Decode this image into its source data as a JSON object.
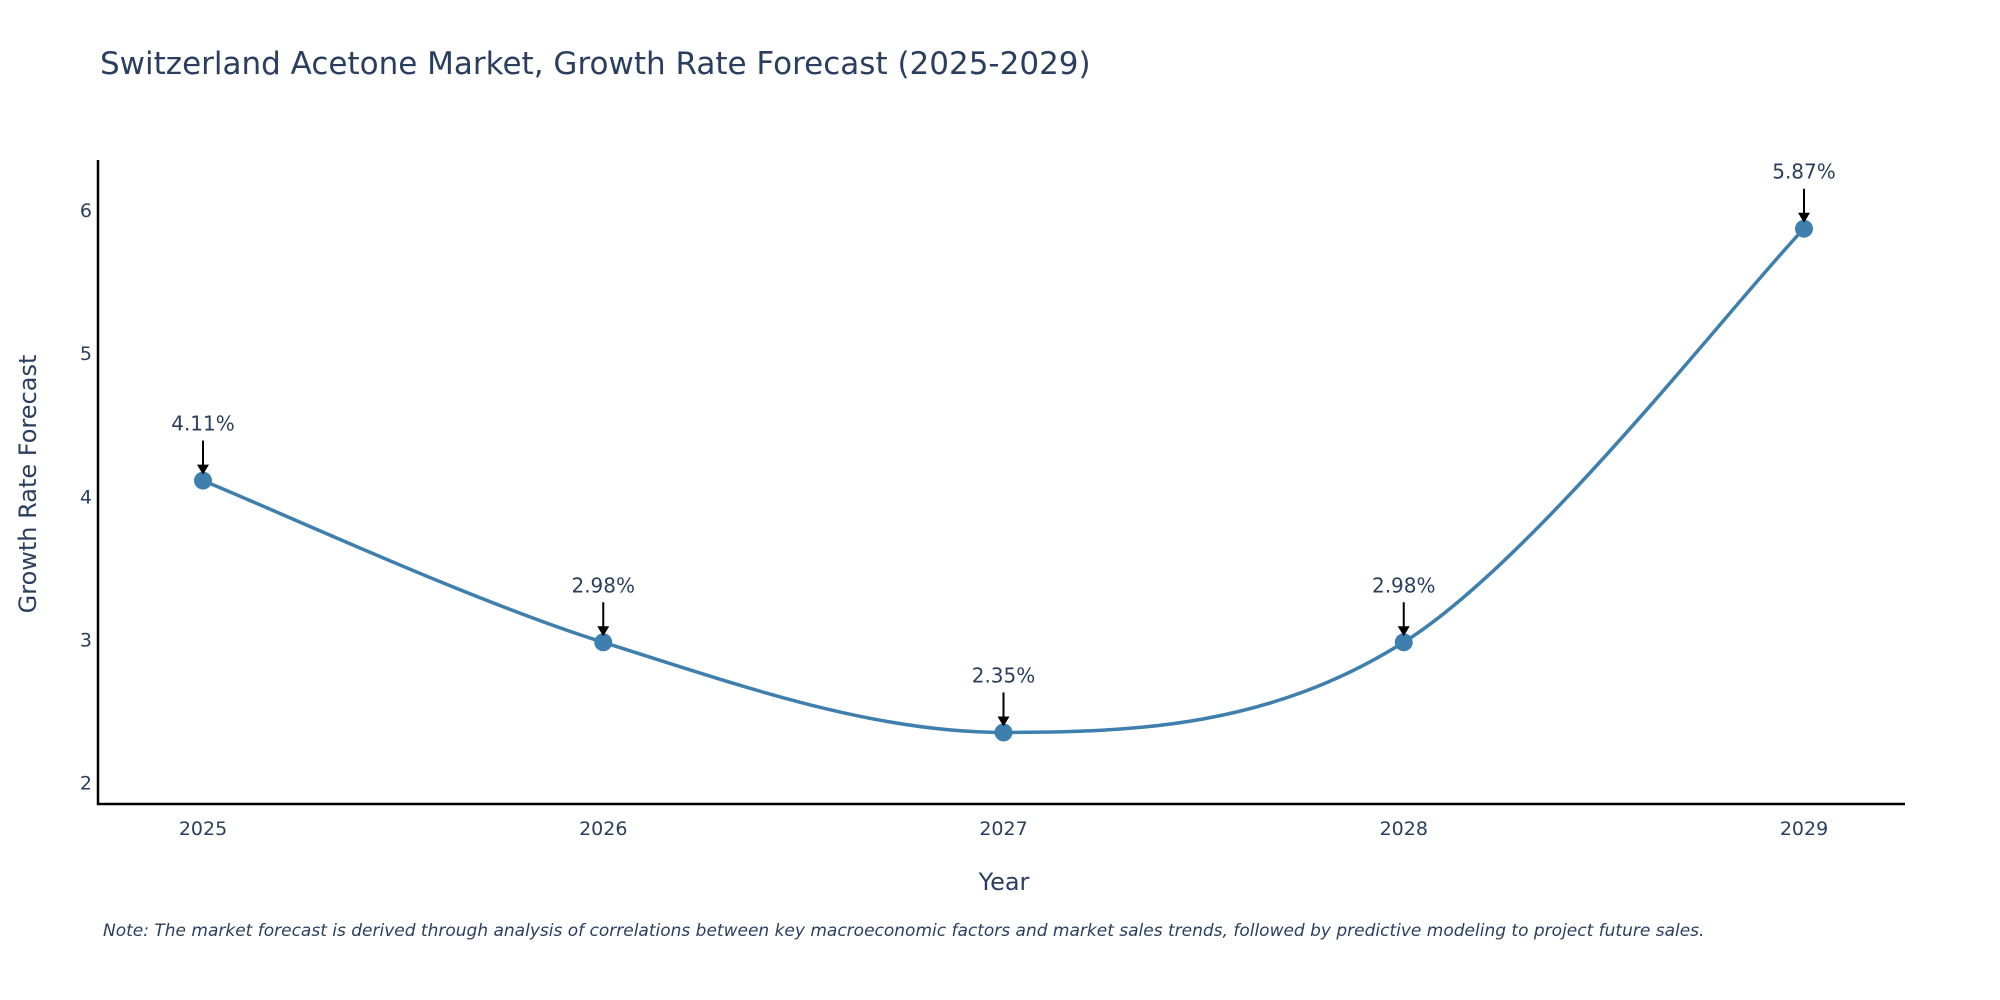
{
  "chart_data": {
    "type": "line",
    "title": "Switzerland Acetone Market, Growth Rate Forecast (2025-2029)",
    "xlabel": "Year",
    "ylabel": "Growth Rate Forecast",
    "categories": [
      "2025",
      "2026",
      "2027",
      "2028",
      "2029"
    ],
    "series": [
      {
        "name": "Growth Rate Forecast",
        "values": [
          4.11,
          2.98,
          2.35,
          2.98,
          5.87
        ],
        "labels": [
          "4.11%",
          "2.98%",
          "2.35%",
          "2.98%",
          "5.87%"
        ]
      }
    ],
    "ylim": [
      1.85,
      6.35
    ],
    "yticks": [
      2,
      3,
      4,
      5,
      6
    ],
    "ytick_labels": [
      "2",
      "3",
      "4",
      "5",
      "6"
    ],
    "grid": false,
    "line_shape": "spline",
    "color": "#3e7fae",
    "annotation_arrow_color": "#000000",
    "note": "Note: The market forecast is derived through analysis of correlations between key macroeconomic factors and market sales trends, followed by predictive modeling to project future sales."
  }
}
